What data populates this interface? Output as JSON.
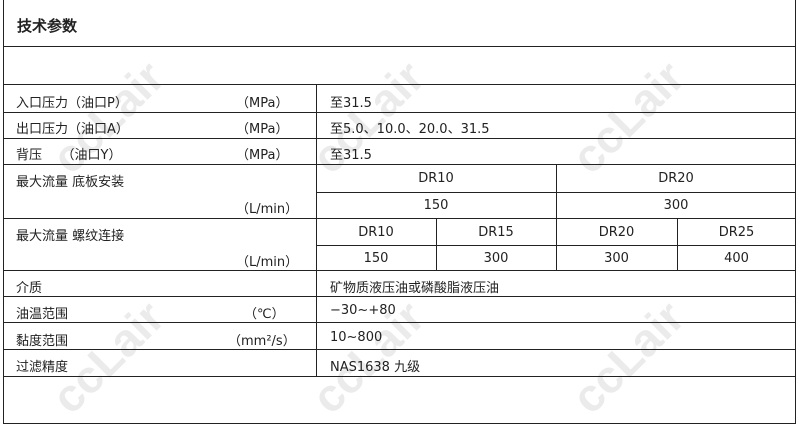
{
  "title": "技术参数",
  "watermark": "ccLair",
  "rows": [
    {
      "label": "入口压力（油口P）",
      "unit": "（MPa）",
      "value": "至31.5"
    },
    {
      "label": "出口压力（油口A）",
      "unit": "（MPa）",
      "value": "至5.0、10.0、20.0、31.5"
    },
    {
      "label": "背压　　（油口Y）",
      "unit": "（MPa）",
      "value": "至31.5"
    }
  ],
  "flow_plate": {
    "label": "最大流量 底板安装",
    "unit": "（L/min）",
    "sizes": [
      "DR10",
      "DR20"
    ],
    "values": [
      "150",
      "300"
    ]
  },
  "flow_thread": {
    "label": "最大流量 螺纹连接",
    "unit": "（L/min）",
    "sizes": [
      "DR10",
      "DR15",
      "DR20",
      "DR25"
    ],
    "values": [
      "150",
      "300",
      "300",
      "400"
    ]
  },
  "rows2": [
    {
      "label": "介质",
      "unit": "",
      "value": "矿物质液压油或磷酸脂液压油"
    },
    {
      "label": "油温范围",
      "unit": "（℃）",
      "value": "−30~+80"
    },
    {
      "label": "黏度范围",
      "unit": "（mm²/s）",
      "value": "10~800"
    },
    {
      "label": "过滤精度",
      "unit": "",
      "value": "NAS1638 九级"
    }
  ]
}
